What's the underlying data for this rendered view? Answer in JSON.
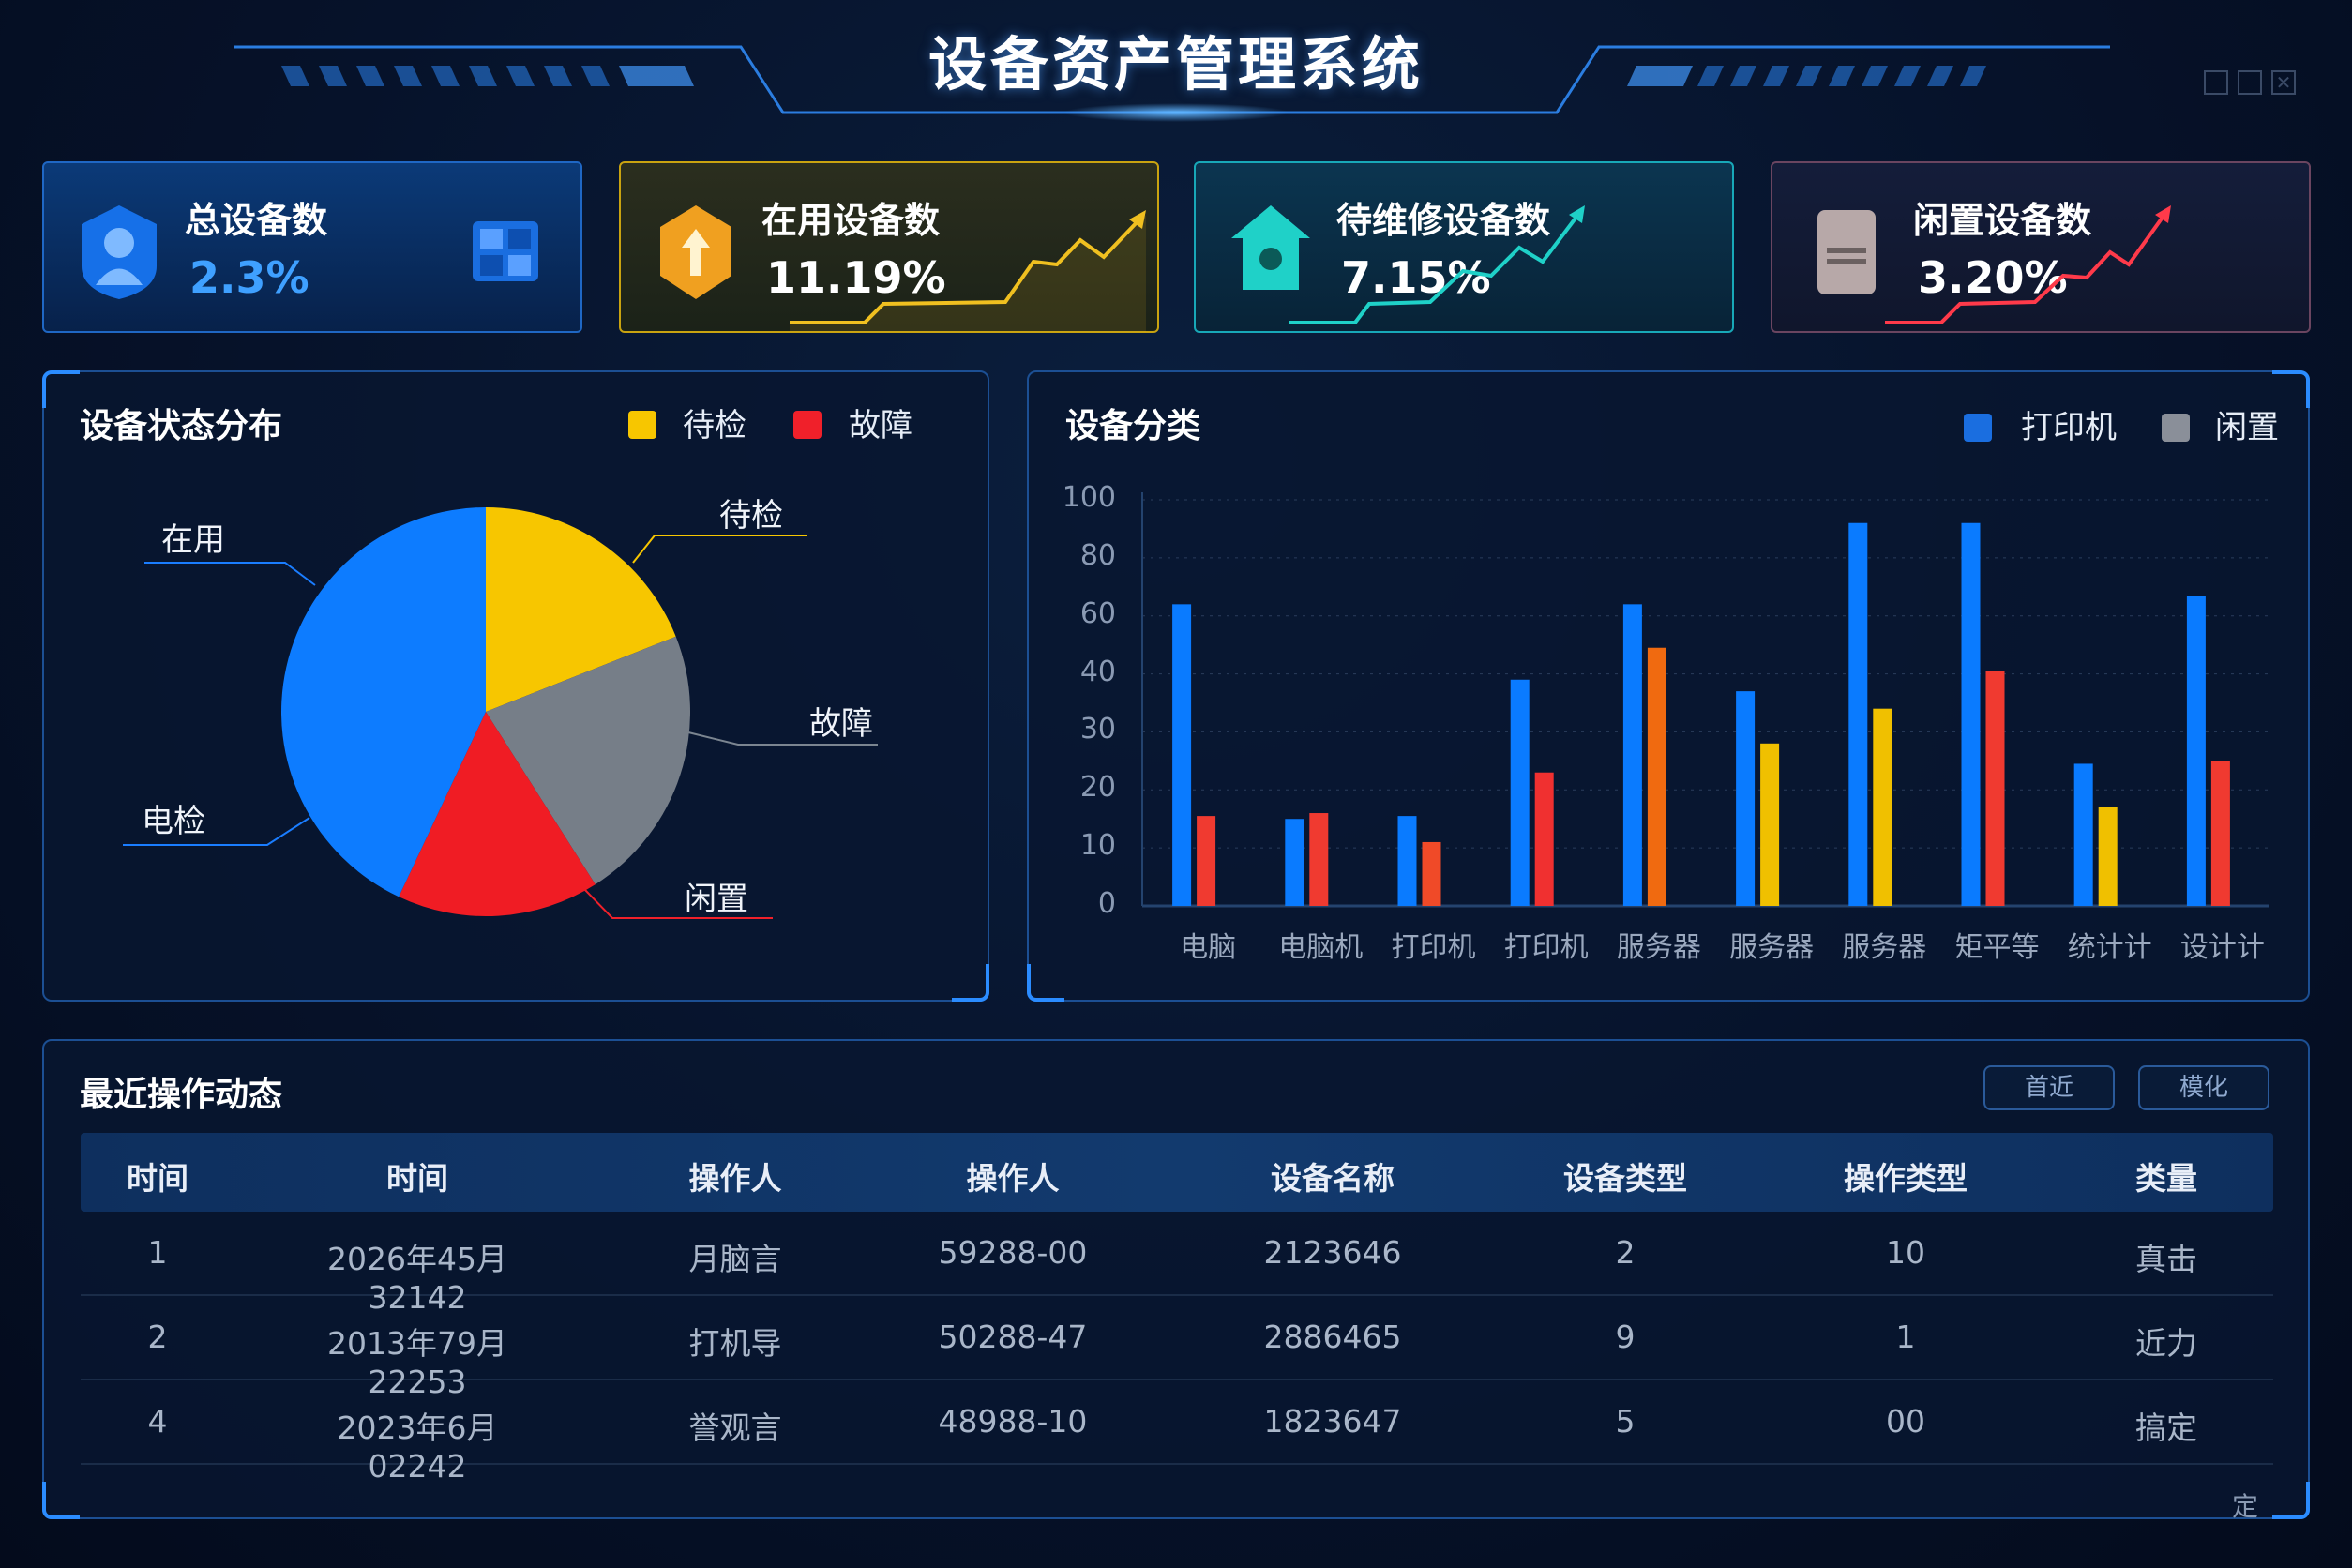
{
  "header": {
    "title": "设备资产管理系统"
  },
  "kpis": [
    {
      "label": "总设备数",
      "value": "2.3%",
      "color": "#3fa0ff",
      "icon": "user-shield-icon"
    },
    {
      "label": "在用设备数",
      "value": "11.19%",
      "color": "#f0c020",
      "icon": "arrow-up-badge-icon"
    },
    {
      "label": "待维修设备数",
      "value": "7.15%",
      "color": "#1fd1c8",
      "icon": "house-badge-icon"
    },
    {
      "label": "闲置设备数",
      "value": "3.20%",
      "color": "#ff3a4a",
      "icon": "device-icon"
    }
  ],
  "status_panel": {
    "title": "设备状态分布",
    "legend": [
      {
        "label": "待检",
        "color": "#f7c600"
      },
      {
        "label": "故障",
        "color": "#f0202a"
      }
    ],
    "slice_labels": {
      "in_use": "在用",
      "pending": "待检",
      "fault": "故障",
      "idle": "闲置",
      "inspect": "电检"
    }
  },
  "category_panel": {
    "title": "设备分类",
    "legend": [
      {
        "label": "打印机",
        "color": "#1a7dff"
      },
      {
        "label": "闲置",
        "color": "#8a8f99"
      }
    ]
  },
  "chart_data": [
    {
      "type": "pie",
      "slices": [
        {
          "label": "待检",
          "value": 19,
          "color": "#f7c600"
        },
        {
          "label": "故障",
          "value": 22,
          "color": "#767e88"
        },
        {
          "label": "闲置",
          "value": 16,
          "color": "#f01c24"
        },
        {
          "label": "在用",
          "value": 43,
          "color": "#0d7cff"
        }
      ]
    },
    {
      "type": "bar",
      "yticks": [
        0,
        10,
        20,
        30,
        40,
        60,
        80,
        100
      ],
      "ylim": [
        0,
        100
      ],
      "grid": true,
      "legend": "top-right",
      "categories": [
        "电脑",
        "电脑机",
        "打印机",
        "打印机",
        "服务器",
        "服务器",
        "服务器",
        "矩平等",
        "统计计",
        "设计计"
      ],
      "series": [
        {
          "name": "打印机",
          "values": [
            64,
            15,
            15.5,
            39,
            64,
            37,
            92,
            92,
            24.5,
            67
          ]
        },
        {
          "name": "闲置",
          "values": [
            15.5,
            16,
            11,
            23,
            49,
            28,
            34,
            41,
            17,
            25
          ],
          "colors": [
            "#f03a30",
            "#f03a30",
            "#f04a28",
            "#f03030",
            "#f06a10",
            "#f0c000",
            "#f0c000",
            "#f03a30",
            "#f0c000",
            "#f03a30"
          ]
        }
      ]
    }
  ],
  "activity": {
    "title": "最近操作动态",
    "buttons": [
      "首近",
      "模化"
    ],
    "columns": [
      "时间",
      "时间",
      "操作人",
      "操作人",
      "设备名称",
      "设备类型",
      "操作类型",
      "类量"
    ],
    "rows": [
      [
        "1",
        "2026年45月 32142",
        "月脑言",
        "59288-00",
        "2123646",
        "2",
        "10",
        "真击"
      ],
      [
        "2",
        "2013年79月 22253",
        "打机导",
        "50288-47",
        "2886465",
        "9",
        "1",
        "近力"
      ],
      [
        "4",
        "2023年6月 02242",
        "誉观言",
        "48988-10",
        "1823647",
        "5",
        "00",
        "搞定"
      ]
    ],
    "footer": "定"
  }
}
